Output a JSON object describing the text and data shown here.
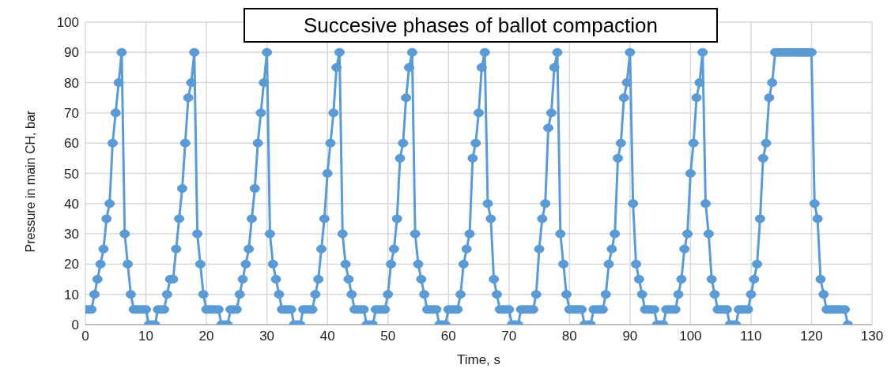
{
  "chart_data": {
    "type": "line",
    "title": "Succesive phases of ballot compaction",
    "xlabel": "Time, s",
    "ylabel": "Pressure in main CH, bar",
    "x": [
      0,
      0.5,
      1,
      1.5,
      2,
      2.5,
      3,
      3.5,
      4,
      4.5,
      5,
      5.5,
      6,
      6.5,
      7,
      7.5,
      8,
      8.5,
      9,
      9.5,
      10,
      10.5,
      11,
      11.5,
      12,
      12.5,
      13,
      13.5,
      14,
      14.5,
      15,
      15.5,
      16,
      16.5,
      17,
      17.5,
      18,
      18.5,
      19,
      19.5,
      20,
      20.5,
      21,
      21.5,
      22,
      22.5,
      23,
      23.5,
      24,
      24.5,
      25,
      25.5,
      26,
      26.5,
      27,
      27.5,
      28,
      28.5,
      29,
      29.5,
      30,
      30.5,
      31,
      31.5,
      32,
      32.5,
      33,
      33.5,
      34,
      34.5,
      35,
      35.5,
      36,
      36.5,
      37,
      37.5,
      38,
      38.5,
      39,
      39.5,
      40,
      40.5,
      41,
      41.5,
      42,
      42.5,
      43,
      43.5,
      44,
      44.5,
      45,
      45.5,
      46,
      46.5,
      47,
      47.5,
      48,
      48.5,
      49,
      49.5,
      50,
      50.5,
      51,
      51.5,
      52,
      52.5,
      53,
      53.5,
      54,
      54.5,
      55,
      55.5,
      56,
      56.5,
      57,
      57.5,
      58,
      58.5,
      59,
      59.5,
      60,
      60.5,
      61,
      61.5,
      62,
      62.5,
      63,
      63.5,
      64,
      64.5,
      65,
      65.5,
      66,
      66.5,
      67,
      67.5,
      68,
      68.5,
      69,
      69.5,
      70,
      70.5,
      71,
      71.5,
      72,
      72.5,
      73,
      73.5,
      74,
      74.5,
      75,
      75.5,
      76,
      76.5,
      77,
      77.5,
      78,
      78.5,
      79,
      79.5,
      80,
      80.5,
      81,
      81.5,
      82,
      82.5,
      83,
      83.5,
      84,
      84.5,
      85,
      85.5,
      86,
      86.5,
      87,
      87.5,
      88,
      88.5,
      89,
      89.5,
      90,
      90.5,
      91,
      91.5,
      92,
      92.5,
      93,
      93.5,
      94,
      94.5,
      95,
      95.5,
      96,
      96.5,
      97,
      97.5,
      98,
      98.5,
      99,
      99.5,
      100,
      100.5,
      101,
      101.5,
      102,
      102.5,
      103,
      103.5,
      104,
      104.5,
      105,
      105.5,
      106,
      106.5,
      107,
      107.5,
      108,
      108.5,
      109,
      109.5,
      110,
      110.5,
      111,
      111.5,
      112,
      112.5,
      113,
      113.5,
      114,
      114.5,
      115,
      115.5,
      116,
      116.5,
      117,
      117.5,
      118,
      118.5,
      119,
      119.5,
      120,
      120.5,
      121,
      121.5,
      122,
      122.5,
      123,
      123.5,
      124,
      124.5,
      125,
      125.5,
      126
    ],
    "series": [
      {
        "color": "#5b9bd5",
        "values": [
          5,
          5,
          5,
          10,
          15,
          20,
          25,
          35,
          40,
          60,
          70,
          80,
          90,
          30,
          20,
          10,
          5,
          5,
          5,
          5,
          5,
          0,
          0,
          0,
          5,
          5,
          5,
          10,
          15,
          15,
          25,
          35,
          45,
          60,
          75,
          80,
          90,
          30,
          20,
          10,
          5,
          5,
          5,
          5,
          5,
          0,
          0,
          0,
          5,
          5,
          5,
          10,
          15,
          20,
          25,
          35,
          45,
          60,
          70,
          80,
          90,
          30,
          20,
          15,
          10,
          5,
          5,
          5,
          5,
          0,
          0,
          0,
          5,
          5,
          5,
          5,
          10,
          15,
          25,
          35,
          50,
          60,
          70,
          85,
          90,
          30,
          20,
          15,
          10,
          5,
          5,
          5,
          5,
          0,
          0,
          0,
          5,
          5,
          5,
          5,
          10,
          20,
          25,
          35,
          55,
          60,
          75,
          85,
          90,
          30,
          20,
          15,
          10,
          5,
          5,
          5,
          5,
          0,
          0,
          0,
          5,
          5,
          5,
          5,
          10,
          20,
          25,
          30,
          55,
          60,
          70,
          85,
          90,
          40,
          35,
          15,
          10,
          5,
          5,
          5,
          5,
          0,
          0,
          0,
          5,
          5,
          5,
          5,
          5,
          10,
          25,
          35,
          40,
          65,
          70,
          85,
          90,
          30,
          20,
          10,
          5,
          5,
          5,
          5,
          5,
          0,
          0,
          0,
          5,
          5,
          5,
          5,
          10,
          20,
          25,
          30,
          55,
          60,
          75,
          80,
          90,
          40,
          20,
          15,
          10,
          5,
          5,
          5,
          5,
          0,
          0,
          0,
          5,
          5,
          5,
          5,
          10,
          15,
          25,
          30,
          50,
          60,
          75,
          80,
          90,
          40,
          30,
          15,
          10,
          5,
          5,
          5,
          5,
          0,
          0,
          0,
          5,
          5,
          5,
          5,
          10,
          15,
          20,
          35,
          55,
          60,
          75,
          80,
          90,
          90,
          90,
          90,
          90,
          90,
          90,
          90,
          90,
          90,
          90,
          90,
          90,
          40,
          35,
          15,
          10,
          5,
          5,
          5,
          5,
          5,
          5,
          5,
          0
        ]
      }
    ],
    "xlim": [
      0,
      130
    ],
    "xticks": [
      0,
      10,
      20,
      30,
      40,
      50,
      60,
      70,
      80,
      90,
      100,
      110,
      120,
      130
    ],
    "ylim": [
      0,
      100
    ],
    "yticks": [
      0,
      10,
      20,
      30,
      40,
      50,
      60,
      70,
      80,
      90,
      100
    ],
    "grid": true,
    "legend": false,
    "marker": "circle",
    "line_style": "solid"
  }
}
